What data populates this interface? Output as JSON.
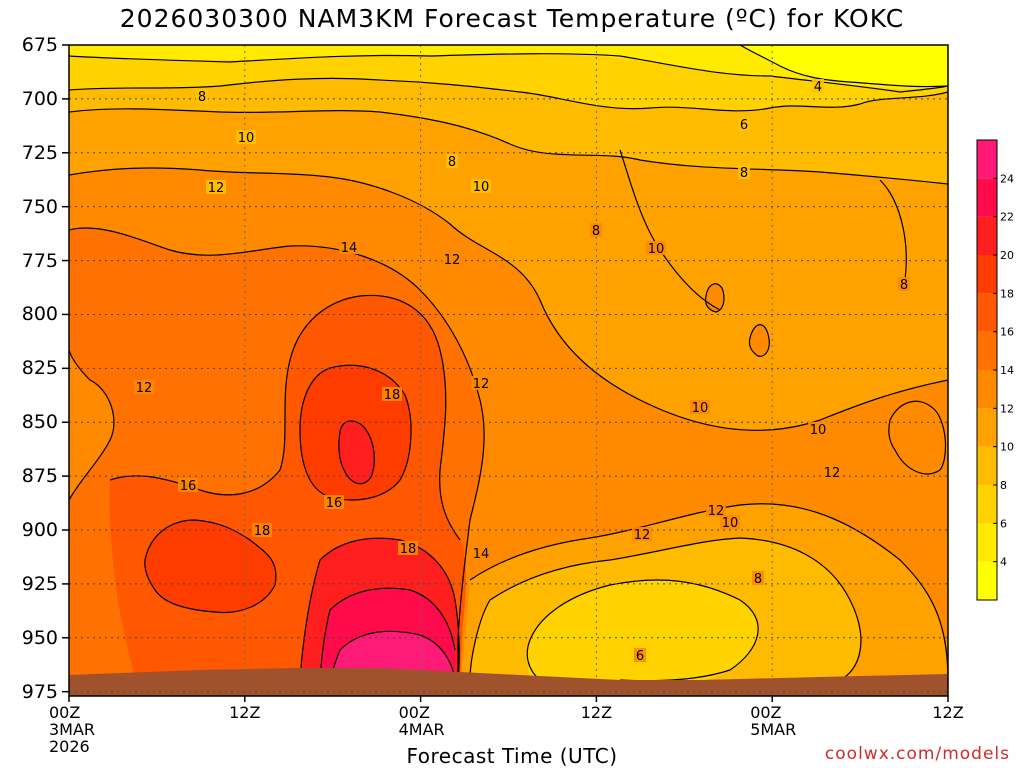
{
  "title": "2026030300 NAM3KM Forecast Temperature (ºC) for KOKC",
  "x_axis_label": "Forecast Time (UTC)",
  "credit": "coolwx.com/models",
  "chart_data": {
    "type": "heatmap",
    "title": "2026030300 NAM3KM Forecast Temperature (ºC) for KOKC",
    "xlabel": "Forecast Time (UTC)",
    "ylabel": "",
    "x_ticks": [
      {
        "hour": 0,
        "lines": [
          "00Z",
          "3MAR",
          "2026"
        ]
      },
      {
        "hour": 12,
        "lines": [
          "12Z"
        ]
      },
      {
        "hour": 24,
        "lines": [
          "00Z",
          "4MAR"
        ]
      },
      {
        "hour": 36,
        "lines": [
          "12Z"
        ]
      },
      {
        "hour": 48,
        "lines": [
          "00Z",
          "5MAR"
        ]
      },
      {
        "hour": 60,
        "lines": [
          "12Z"
        ]
      }
    ],
    "xlim": [
      0,
      60
    ],
    "y_ticks": [
      675,
      700,
      725,
      750,
      775,
      800,
      825,
      850,
      875,
      900,
      925,
      950,
      975
    ],
    "ylim": [
      675,
      977
    ],
    "grid": true,
    "colorbar": {
      "levels": [
        2,
        4,
        6,
        8,
        10,
        12,
        14,
        16,
        18,
        20,
        22,
        24,
        26
      ],
      "labels": [
        "4",
        "6",
        "8",
        "10",
        "12",
        "14",
        "16",
        "18",
        "20",
        "22",
        "24"
      ],
      "colors": [
        "#ffff00",
        "#ffea00",
        "#ffd200",
        "#ffbb00",
        "#ffa200",
        "#ff8a00",
        "#ff7100",
        "#ff5800",
        "#ff3c00",
        "#ff1f1f",
        "#ff0a4a",
        "#ff1a78"
      ]
    },
    "contour_labels": [
      "4",
      "6",
      "8",
      "10",
      "12",
      "14",
      "16",
      "18"
    ],
    "ground_color": "#a0522d"
  }
}
